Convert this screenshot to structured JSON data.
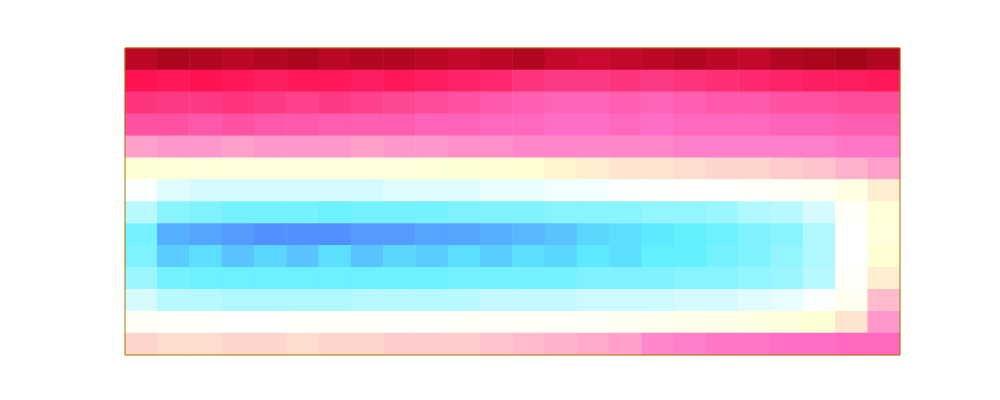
{
  "chart_data": {
    "type": "heatmap",
    "tick_labels": false,
    "zlim": [
      0,
      10
    ],
    "color": [
      "#4b4bff",
      "#5ef0ff",
      "#ffffff",
      "#ffffd0",
      "#ff70c8",
      "#ff1050",
      "#7a0000"
    ],
    "cells": [
      [
        9.2,
        9.4,
        9.3,
        9.2,
        9.3,
        9.4,
        9.2,
        9.3,
        9.3,
        9.2,
        9.1,
        9.2,
        9.3,
        9.1,
        9.0,
        9.1,
        9.2,
        9.3,
        9.2,
        9.1,
        9.3,
        9.4,
        9.5,
        9.3
      ],
      [
        8.3,
        8.2,
        8.3,
        8.2,
        8.1,
        8.2,
        8.2,
        8.1,
        8.2,
        8.1,
        8.0,
        7.9,
        7.7,
        7.6,
        7.6,
        7.7,
        7.6,
        7.7,
        7.8,
        7.9,
        8.0,
        8.1,
        8.1,
        8.2
      ],
      [
        7.7,
        7.6,
        7.6,
        7.7,
        7.6,
        7.5,
        7.6,
        7.5,
        7.4,
        7.3,
        7.2,
        7.1,
        7.0,
        6.9,
        6.9,
        7.0,
        6.9,
        7.0,
        7.1,
        7.1,
        7.2,
        7.2,
        7.3,
        7.3
      ],
      [
        7.2,
        7.2,
        7.1,
        7.2,
        7.1,
        7.1,
        7.0,
        7.0,
        7.0,
        6.9,
        6.9,
        6.8,
        6.8,
        6.7,
        6.7,
        6.8,
        6.7,
        6.8,
        6.8,
        6.8,
        6.9,
        6.9,
        7.0,
        7.0
      ],
      [
        6.1,
        6.2,
        6.2,
        6.1,
        6.2,
        6.2,
        6.2,
        6.1,
        6.2,
        6.2,
        6.3,
        6.3,
        6.4,
        6.4,
        6.4,
        6.4,
        6.4,
        6.5,
        6.5,
        6.5,
        6.5,
        6.5,
        6.6,
        6.6
      ],
      [
        4.8,
        4.7,
        4.6,
        4.6,
        4.5,
        4.5,
        4.6,
        4.6,
        4.6,
        4.7,
        4.8,
        4.9,
        5.0,
        5.1,
        5.2,
        5.3,
        5.3,
        5.4,
        5.5,
        5.5,
        5.6,
        5.7,
        5.9,
        6.1
      ],
      [
        3.3,
        3.0,
        2.9,
        2.9,
        2.9,
        2.9,
        2.9,
        2.9,
        3.0,
        3.0,
        3.0,
        3.1,
        3.1,
        3.2,
        3.2,
        3.3,
        3.3,
        3.4,
        3.4,
        3.5,
        3.6,
        3.8,
        4.3,
        5.2
      ],
      [
        2.6,
        2.1,
        2.0,
        1.9,
        1.9,
        1.9,
        1.8,
        1.9,
        1.9,
        1.9,
        2.0,
        2.0,
        2.0,
        2.1,
        2.1,
        2.1,
        2.2,
        2.2,
        2.3,
        2.5,
        2.6,
        2.9,
        3.6,
        4.7
      ],
      [
        1.9,
        1.0,
        0.9,
        0.8,
        0.7,
        0.7,
        0.7,
        0.8,
        0.8,
        0.9,
        0.9,
        1.0,
        1.1,
        1.2,
        1.4,
        1.5,
        1.6,
        1.7,
        1.8,
        2.0,
        2.1,
        2.5,
        3.4,
        4.6
      ],
      [
        2.0,
        1.3,
        1.5,
        1.2,
        1.4,
        1.2,
        1.5,
        1.2,
        1.4,
        1.3,
        1.5,
        1.3,
        1.5,
        1.4,
        1.6,
        1.5,
        1.7,
        1.7,
        1.9,
        2.0,
        2.2,
        2.5,
        3.4,
        4.9
      ],
      [
        2.3,
        1.9,
        1.8,
        1.8,
        1.8,
        1.8,
        1.8,
        1.8,
        1.8,
        1.8,
        1.9,
        1.9,
        1.9,
        1.9,
        2.0,
        2.0,
        2.0,
        2.1,
        2.1,
        2.2,
        2.3,
        2.6,
        3.5,
        5.2
      ],
      [
        2.9,
        2.6,
        2.6,
        2.5,
        2.5,
        2.5,
        2.5,
        2.6,
        2.6,
        2.6,
        2.6,
        2.7,
        2.7,
        2.7,
        2.8,
        2.8,
        2.8,
        2.9,
        2.9,
        3.0,
        3.1,
        3.3,
        3.9,
        5.8
      ],
      [
        3.7,
        3.5,
        3.5,
        3.4,
        3.4,
        3.5,
        3.5,
        3.5,
        3.5,
        3.5,
        3.6,
        3.6,
        3.6,
        3.7,
        3.7,
        3.8,
        3.9,
        4.0,
        4.1,
        4.3,
        4.5,
        4.8,
        5.3,
        6.2
      ],
      [
        5.5,
        5.4,
        5.4,
        5.5,
        5.5,
        5.4,
        5.5,
        5.5,
        5.6,
        5.6,
        5.6,
        5.7,
        5.8,
        5.9,
        6.0,
        6.1,
        6.4,
        6.5,
        6.6,
        6.6,
        6.7,
        6.7,
        6.8,
        6.8
      ]
    ]
  }
}
